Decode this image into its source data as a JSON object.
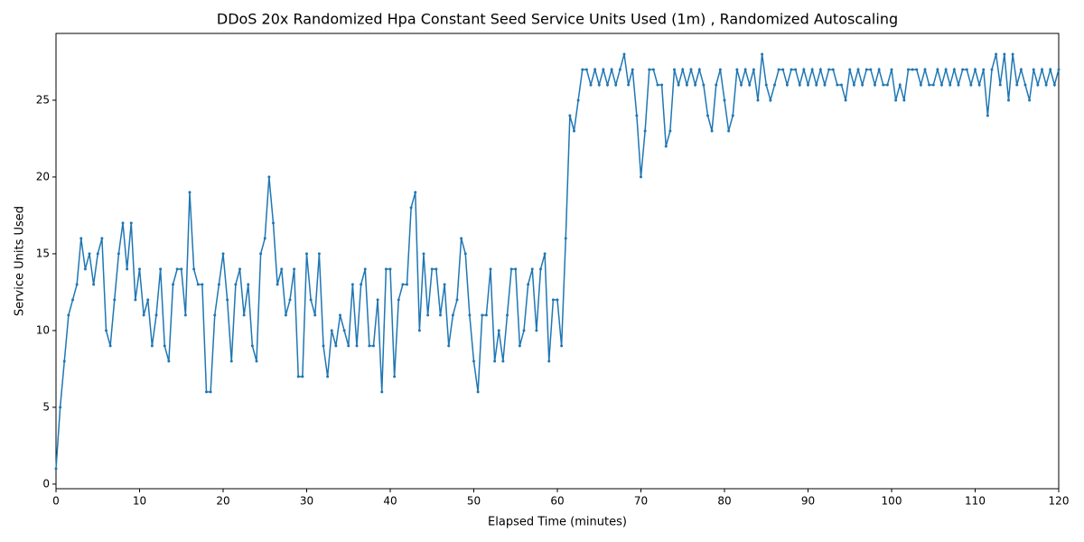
{
  "chart_data": {
    "type": "line",
    "title": "DDoS 20x Randomized Hpa Constant Seed Service Units Used (1m) , Randomized Autoscaling",
    "x_label": "Elapsed Time (minutes)",
    "y_label": "Service Units Used",
    "x": [
      0,
      0.5,
      1,
      1.5,
      2,
      2.5,
      3,
      3.5,
      4,
      4.5,
      5,
      5.5,
      6,
      6.5,
      7,
      7.5,
      8,
      8.5,
      9,
      9.5,
      10,
      10.5,
      11,
      11.5,
      12,
      12.5,
      13,
      13.5,
      14,
      14.5,
      15,
      15.5,
      16,
      16.5,
      17,
      17.5,
      18,
      18.5,
      19,
      19.5,
      20,
      20.5,
      21,
      21.5,
      22,
      22.5,
      23,
      23.5,
      24,
      24.5,
      25,
      25.5,
      26,
      26.5,
      27,
      27.5,
      28,
      28.5,
      29,
      29.5,
      30,
      30.5,
      31,
      31.5,
      32,
      32.5,
      33,
      33.5,
      34,
      34.5,
      35,
      35.5,
      36,
      36.5,
      37,
      37.5,
      38,
      38.5,
      39,
      39.5,
      40,
      40.5,
      41,
      41.5,
      42,
      42.5,
      43,
      43.5,
      44,
      44.5,
      45,
      45.5,
      46,
      46.5,
      47,
      47.5,
      48,
      48.5,
      49,
      49.5,
      50,
      50.5,
      51,
      51.5,
      52,
      52.5,
      53,
      53.5,
      54,
      54.5,
      55,
      55.5,
      56,
      56.5,
      57,
      57.5,
      58,
      58.5,
      59,
      59.5,
      60,
      60.5,
      61,
      61.5,
      62,
      62.5,
      63,
      63.5,
      64,
      64.5,
      65,
      65.5,
      66,
      66.5,
      67,
      67.5,
      68,
      68.5,
      69,
      69.5,
      70,
      70.5,
      71,
      71.5,
      72,
      72.5,
      73,
      73.5,
      74,
      74.5,
      75,
      75.5,
      76,
      76.5,
      77,
      77.5,
      78,
      78.5,
      79,
      79.5,
      80,
      80.5,
      81,
      81.5,
      82,
      82.5,
      83,
      83.5,
      84,
      84.5,
      85,
      85.5,
      86,
      86.5,
      87,
      87.5,
      88,
      88.5,
      89,
      89.5,
      90,
      90.5,
      91,
      91.5,
      92,
      92.5,
      93,
      93.5,
      94,
      94.5,
      95,
      95.5,
      96,
      96.5,
      97,
      97.5,
      98,
      98.5,
      99,
      99.5,
      100,
      100.5,
      101,
      101.5,
      102,
      102.5,
      103,
      103.5,
      104,
      104.5,
      105,
      105.5,
      106,
      106.5,
      107,
      107.5,
      108,
      108.5,
      109,
      109.5,
      110,
      110.5,
      111,
      111.5,
      112,
      112.5,
      113,
      113.5,
      114,
      114.5,
      115,
      115.5,
      116,
      116.5,
      117,
      117.5,
      118,
      118.5,
      119,
      119.5,
      120
    ],
    "series": [
      {
        "color": "#1f77b4",
        "values": [
          1,
          5,
          8,
          11,
          12,
          13,
          16,
          14,
          15,
          13,
          15,
          16,
          10,
          9,
          12,
          15,
          17,
          14,
          17,
          12,
          14,
          11,
          12,
          9,
          11,
          14,
          9,
          8,
          13,
          14,
          14,
          11,
          19,
          14,
          13,
          13,
          6,
          6,
          11,
          13,
          15,
          12,
          8,
          13,
          14,
          11,
          13,
          9,
          8,
          15,
          16,
          20,
          17,
          13,
          14,
          11,
          12,
          14,
          7,
          7,
          15,
          12,
          11,
          15,
          9,
          7,
          10,
          9,
          11,
          10,
          9,
          13,
          9,
          13,
          14,
          9,
          9,
          12,
          6,
          14,
          14,
          7,
          12,
          13,
          13,
          18,
          19,
          10,
          15,
          11,
          14,
          14,
          11,
          13,
          9,
          11,
          12,
          16,
          15,
          11,
          8,
          6,
          11,
          11,
          14,
          8,
          10,
          8,
          11,
          14,
          14,
          9,
          10,
          13,
          14,
          10,
          14,
          15,
          8,
          12,
          12,
          9,
          16,
          24,
          23,
          25,
          27,
          27,
          26,
          27,
          26,
          27,
          26,
          27,
          26,
          27,
          28,
          26,
          27,
          24,
          20,
          23,
          27,
          27,
          26,
          26,
          22,
          23,
          27,
          26,
          27,
          26,
          27,
          26,
          27,
          26,
          24,
          23,
          26,
          27,
          25,
          23,
          24,
          27,
          26,
          27,
          26,
          27,
          25,
          28,
          26,
          25,
          26,
          27,
          27,
          26,
          27,
          27,
          26,
          27,
          26,
          27,
          26,
          27,
          26,
          27,
          27,
          26,
          26,
          25,
          27,
          26,
          27,
          26,
          27,
          27,
          26,
          27,
          26,
          26,
          27,
          25,
          26,
          25,
          27,
          27,
          27,
          26,
          27,
          26,
          26,
          27,
          26,
          27,
          26,
          27,
          26,
          27,
          27,
          26,
          27,
          26,
          27,
          24,
          27,
          28,
          26,
          28,
          25,
          28,
          26,
          27,
          26,
          25,
          27,
          26,
          27,
          26,
          27,
          26,
          27
        ]
      }
    ],
    "xlim": [
      0,
      120
    ],
    "xticks": [
      0,
      10,
      20,
      30,
      40,
      50,
      60,
      70,
      80,
      90,
      100,
      110,
      120
    ],
    "ylim": [
      -0.3,
      29.35
    ],
    "yticks": [
      0,
      5,
      10,
      15,
      20,
      25
    ]
  }
}
